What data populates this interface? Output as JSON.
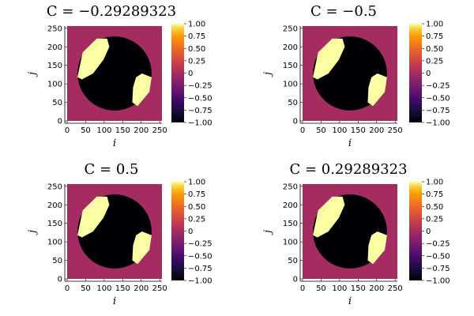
{
  "chart_data": [
    {
      "type": "heatmap",
      "title": "C = −0.29289323",
      "xlabel": "i",
      "ylabel": "j",
      "xlim": [
        0,
        256
      ],
      "ylim": [
        0,
        256
      ],
      "x_ticks": [
        "0",
        "50",
        "100",
        "150",
        "200",
        "250"
      ],
      "y_ticks": [
        "0",
        "50",
        "100",
        "150",
        "200",
        "250"
      ],
      "colorbar": {
        "range": [
          -1,
          1
        ],
        "ticks": [
          "1.00",
          "0.75",
          "0.50",
          "0.25",
          "0",
          "−0.25",
          "−0.50",
          "−0.75",
          "−1.00"
        ],
        "colormap": "inferno"
      },
      "values": {
        "outside": 0,
        "disk": -1,
        "upper_left_lobe": 1,
        "right_lobe": 1
      }
    },
    {
      "type": "heatmap",
      "title": "C = −0.5",
      "xlabel": "i",
      "ylabel": "j",
      "xlim": [
        0,
        256
      ],
      "ylim": [
        0,
        256
      ],
      "x_ticks": [
        "0",
        "50",
        "100",
        "150",
        "200",
        "250"
      ],
      "y_ticks": [
        "0",
        "50",
        "100",
        "150",
        "200",
        "250"
      ],
      "colorbar": {
        "range": [
          -1,
          1
        ],
        "ticks": [
          "1.00",
          "0.75",
          "0.50",
          "0.25",
          "0",
          "−0.25",
          "−0.50",
          "−0.75",
          "−1.00"
        ],
        "colormap": "inferno"
      },
      "values": {
        "outside": 0,
        "disk": -1,
        "upper_left_lobe": 1,
        "right_lobe": 1
      }
    },
    {
      "type": "heatmap",
      "title": "C = 0.5",
      "xlabel": "i",
      "ylabel": "j",
      "xlim": [
        0,
        256
      ],
      "ylim": [
        0,
        256
      ],
      "x_ticks": [
        "0",
        "50",
        "100",
        "150",
        "200",
        "250"
      ],
      "y_ticks": [
        "0",
        "50",
        "100",
        "150",
        "200",
        "250"
      ],
      "colorbar": {
        "range": [
          -1,
          1
        ],
        "ticks": [
          "1.00",
          "0.75",
          "0.50",
          "0.25",
          "0",
          "−0.25",
          "−0.50",
          "−0.75",
          "−1.00"
        ],
        "colormap": "inferno"
      },
      "values": {
        "outside": 0,
        "disk": -1,
        "upper_left_lobe": 1,
        "right_lobe": 1
      }
    },
    {
      "type": "heatmap",
      "title": "C = 0.29289323",
      "xlabel": "i",
      "ylabel": "j",
      "xlim": [
        0,
        256
      ],
      "ylim": [
        0,
        256
      ],
      "x_ticks": [
        "0",
        "50",
        "100",
        "150",
        "200",
        "250"
      ],
      "y_ticks": [
        "0",
        "50",
        "100",
        "150",
        "200",
        "250"
      ],
      "colorbar": {
        "range": [
          -1,
          1
        ],
        "ticks": [
          "1.00",
          "0.75",
          "0.50",
          "0.25",
          "0",
          "−0.25",
          "−0.50",
          "−0.75",
          "−1.00"
        ],
        "colormap": "inferno"
      },
      "values": {
        "outside": 0,
        "disk": -1,
        "upper_left_lobe": 1,
        "right_lobe": 1
      }
    }
  ]
}
